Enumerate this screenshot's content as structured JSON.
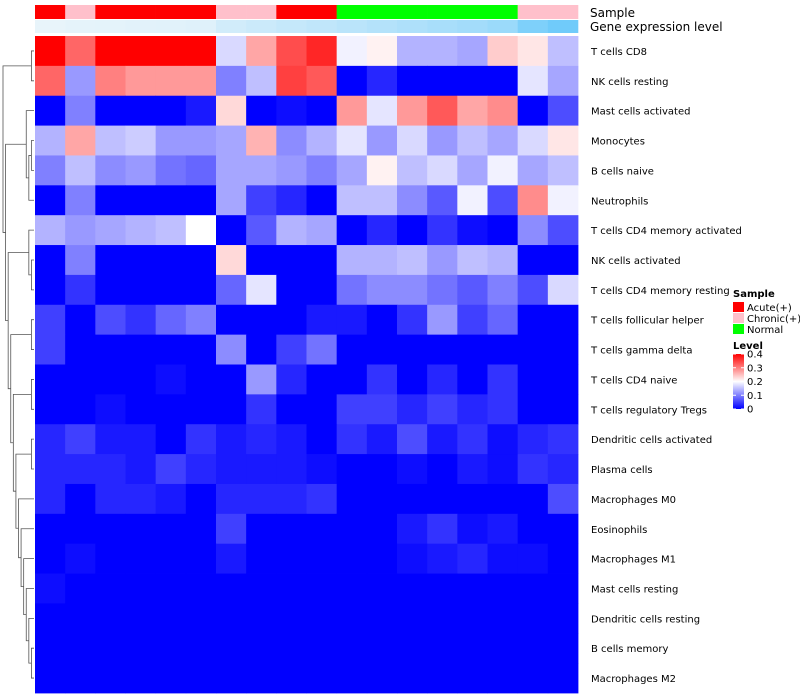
{
  "chart_data": {
    "type": "heatmap",
    "annotation_titles": [
      "Sample",
      "Gene expression level"
    ],
    "legend_sample": {
      "title": "Sample",
      "entries": [
        {
          "label": "Acute(+)",
          "color": "#ff0000"
        },
        {
          "label": "Chronic(+)",
          "color": "#ffc0cb"
        },
        {
          "label": "Normal",
          "color": "#00ff00"
        }
      ]
    },
    "legend_level": {
      "title": "Level",
      "ticks": [
        "0.4",
        "0.3",
        "0.2",
        "0.1",
        "0"
      ],
      "tick_values": [
        0.4,
        0.3,
        0.2,
        0.1,
        0
      ],
      "range": [
        0,
        0.4
      ],
      "colors": [
        "#0000ff",
        "#ffffff",
        "#ff0000"
      ]
    },
    "sample_groups": [
      "Acute(+)",
      "Chronic(+)",
      "Acute(+)",
      "Acute(+)",
      "Acute(+)",
      "Acute(+)",
      "Chronic(+)",
      "Chronic(+)",
      "Acute(+)",
      "Acute(+)",
      "Normal",
      "Normal",
      "Normal",
      "Normal",
      "Normal",
      "Normal",
      "Chronic(+)",
      "Chronic(+)"
    ],
    "gene_expression_level": [
      0.02,
      0.04,
      0.05,
      0.06,
      0.07,
      0.08,
      0.18,
      0.22,
      0.26,
      0.3,
      0.34,
      0.38,
      0.42,
      0.46,
      0.5,
      0.55,
      0.75,
      0.85
    ],
    "rows": [
      {
        "name": "T cells CD8",
        "values": [
          0.4,
          0.32,
          0.4,
          0.4,
          0.4,
          0.4,
          0.17,
          0.27,
          0.34,
          0.37,
          0.19,
          0.21,
          0.14,
          0.14,
          0.13,
          0.24,
          0.22,
          0.15
        ]
      },
      {
        "name": "NK cells resting",
        "values": [
          0.32,
          0.12,
          0.3,
          0.28,
          0.28,
          0.28,
          0.1,
          0.15,
          0.35,
          0.33,
          0.0,
          0.03,
          0.0,
          0.0,
          0.0,
          0.0,
          0.18,
          0.13
        ]
      },
      {
        "name": "Mast cells activated",
        "values": [
          0.0,
          0.1,
          0.0,
          0.0,
          0.0,
          0.02,
          0.23,
          0.0,
          0.01,
          0.0,
          0.28,
          0.18,
          0.28,
          0.33,
          0.27,
          0.29,
          0.0,
          0.06
        ]
      },
      {
        "name": "Monocytes",
        "values": [
          0.14,
          0.27,
          0.15,
          0.16,
          0.12,
          0.12,
          0.13,
          0.26,
          0.11,
          0.14,
          0.18,
          0.12,
          0.17,
          0.12,
          0.15,
          0.13,
          0.17,
          0.22
        ]
      },
      {
        "name": "B cells naive",
        "values": [
          0.1,
          0.15,
          0.11,
          0.12,
          0.09,
          0.08,
          0.13,
          0.13,
          0.12,
          0.1,
          0.13,
          0.21,
          0.15,
          0.17,
          0.13,
          0.19,
          0.13,
          0.15
        ]
      },
      {
        "name": "Neutrophils",
        "values": [
          0.0,
          0.1,
          0.0,
          0.0,
          0.0,
          0.0,
          0.13,
          0.05,
          0.03,
          0.0,
          0.15,
          0.15,
          0.11,
          0.07,
          0.19,
          0.06,
          0.29,
          0.19
        ]
      },
      {
        "name": "T cells CD4 memory activated",
        "values": [
          0.14,
          0.12,
          0.13,
          0.14,
          0.15,
          0.2,
          0.0,
          0.07,
          0.14,
          0.13,
          0.0,
          0.03,
          0.0,
          0.04,
          0.01,
          0.0,
          0.11,
          0.06
        ]
      },
      {
        "name": "NK cells activated",
        "values": [
          0.0,
          0.1,
          0.0,
          0.0,
          0.0,
          0.0,
          0.23,
          0.0,
          0.0,
          0.0,
          0.14,
          0.14,
          0.15,
          0.12,
          0.15,
          0.14,
          0.0,
          0.0
        ]
      },
      {
        "name": "T cells CD4 memory resting",
        "values": [
          0.0,
          0.04,
          0.0,
          0.0,
          0.0,
          0.0,
          0.08,
          0.18,
          0.0,
          0.0,
          0.09,
          0.11,
          0.11,
          0.09,
          0.07,
          0.1,
          0.06,
          0.17
        ]
      },
      {
        "name": "T cells follicular helper",
        "values": [
          0.05,
          0.0,
          0.06,
          0.04,
          0.08,
          0.1,
          0.0,
          0.0,
          0.0,
          0.02,
          0.02,
          0.0,
          0.04,
          0.12,
          0.05,
          0.08,
          0.0,
          0.0
        ]
      },
      {
        "name": "T cells gamma delta",
        "values": [
          0.05,
          0.0,
          0.0,
          0.0,
          0.0,
          0.0,
          0.11,
          0.0,
          0.05,
          0.09,
          0.0,
          0.0,
          0.0,
          0.0,
          0.0,
          0.0,
          0.0,
          0.0
        ]
      },
      {
        "name": "T cells CD4 naive",
        "values": [
          0.0,
          0.0,
          0.0,
          0.0,
          0.01,
          0.0,
          0.0,
          0.12,
          0.03,
          0.0,
          0.0,
          0.04,
          0.0,
          0.03,
          0.0,
          0.04,
          0.0,
          0.0
        ]
      },
      {
        "name": "T cells regulatory  Tregs",
        "values": [
          0.0,
          0.0,
          0.01,
          0.0,
          0.0,
          0.0,
          0.0,
          0.04,
          0.0,
          0.0,
          0.05,
          0.05,
          0.03,
          0.05,
          0.03,
          0.04,
          0.0,
          0.0
        ]
      },
      {
        "name": "Dendritic cells activated",
        "values": [
          0.03,
          0.05,
          0.02,
          0.02,
          0.0,
          0.04,
          0.02,
          0.03,
          0.02,
          0.0,
          0.04,
          0.02,
          0.06,
          0.02,
          0.04,
          0.01,
          0.03,
          0.04
        ]
      },
      {
        "name": "Plasma cells",
        "values": [
          0.03,
          0.03,
          0.03,
          0.02,
          0.05,
          0.03,
          0.02,
          0.02,
          0.02,
          0.01,
          0.0,
          0.0,
          0.01,
          0.0,
          0.02,
          0.01,
          0.04,
          0.03
        ]
      },
      {
        "name": "Macrophages M0",
        "values": [
          0.03,
          0.0,
          0.03,
          0.03,
          0.02,
          0.0,
          0.03,
          0.03,
          0.03,
          0.04,
          0.0,
          0.0,
          0.0,
          0.0,
          0.0,
          0.0,
          0.0,
          0.06
        ]
      },
      {
        "name": "Eosinophils",
        "values": [
          0.0,
          0.0,
          0.0,
          0.0,
          0.0,
          0.0,
          0.05,
          0.0,
          0.0,
          0.0,
          0.0,
          0.0,
          0.02,
          0.04,
          0.01,
          0.02,
          0.0,
          0.0
        ]
      },
      {
        "name": "Macrophages M1",
        "values": [
          0.0,
          0.01,
          0.0,
          0.0,
          0.0,
          0.0,
          0.02,
          0.0,
          0.0,
          0.0,
          0.0,
          0.0,
          0.01,
          0.02,
          0.03,
          0.01,
          0.01,
          0.0
        ]
      },
      {
        "name": "Mast cells resting",
        "values": [
          0.01,
          0.0,
          0.0,
          0.0,
          0.0,
          0.0,
          0.0,
          0.0,
          0.0,
          0.0,
          0.0,
          0.0,
          0.0,
          0.0,
          0.0,
          0.0,
          0.0,
          0.0
        ]
      },
      {
        "name": "Dendritic cells resting",
        "values": [
          0.0,
          0.0,
          0.0,
          0.0,
          0.0,
          0.0,
          0.0,
          0.0,
          0.0,
          0.0,
          0.0,
          0.0,
          0.0,
          0.0,
          0.0,
          0.0,
          0.0,
          0.0
        ]
      },
      {
        "name": "B cells memory",
        "values": [
          0.0,
          0.0,
          0.0,
          0.0,
          0.0,
          0.0,
          0.0,
          0.0,
          0.0,
          0.0,
          0.0,
          0.0,
          0.0,
          0.0,
          0.0,
          0.0,
          0.0,
          0.0
        ]
      },
      {
        "name": "Macrophages M2",
        "values": [
          0.0,
          0.0,
          0.0,
          0.0,
          0.0,
          0.0,
          0.0,
          0.0,
          0.0,
          0.0,
          0.0,
          0.0,
          0.0,
          0.0,
          0.0,
          0.0,
          0.0,
          0.0
        ]
      }
    ]
  }
}
